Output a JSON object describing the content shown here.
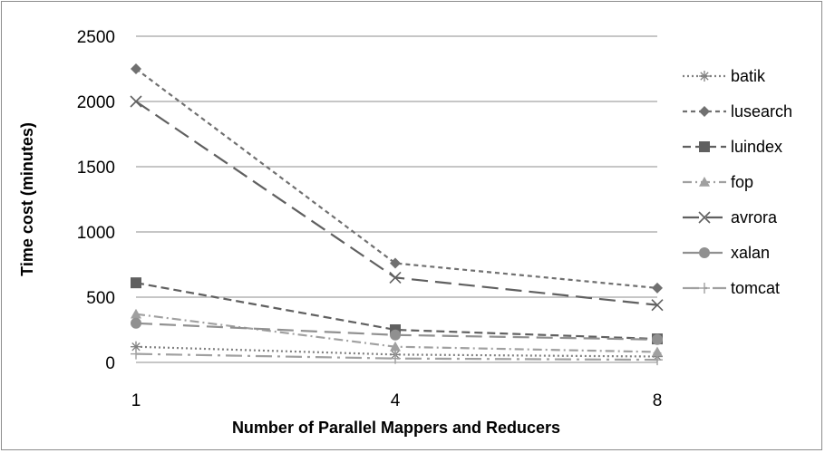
{
  "chart_data": {
    "type": "line",
    "title": "",
    "xlabel": "Number of Parallel Mappers and Reducers",
    "ylabel": "Time cost (minutes)",
    "categories": [
      "1",
      "4",
      "8"
    ],
    "ylim": [
      0,
      2500
    ],
    "yticks": [
      "0",
      "500",
      "1000",
      "1500",
      "2000",
      "2500"
    ],
    "grid": true,
    "legend_position": "right",
    "series": [
      {
        "name": "batik",
        "values": [
          120,
          60,
          45
        ],
        "marker": "asterisk",
        "dash": "dotted",
        "color": "#808080"
      },
      {
        "name": "lusearch",
        "values": [
          2250,
          760,
          570
        ],
        "marker": "diamond",
        "dash": "short-dash",
        "color": "#707070"
      },
      {
        "name": "luindex",
        "values": [
          610,
          250,
          180
        ],
        "marker": "square",
        "dash": "dash",
        "color": "#606060"
      },
      {
        "name": "fop",
        "values": [
          370,
          120,
          80
        ],
        "marker": "triangle",
        "dash": "dash-dot",
        "color": "#a0a0a0"
      },
      {
        "name": "avrora",
        "values": [
          2000,
          650,
          440
        ],
        "marker": "x",
        "dash": "long-dash",
        "color": "#606060"
      },
      {
        "name": "xalan",
        "values": [
          300,
          210,
          175
        ],
        "marker": "circle",
        "dash": "long-dash",
        "color": "#909090"
      },
      {
        "name": "tomcat",
        "values": [
          65,
          30,
          20
        ],
        "marker": "plus",
        "dash": "long-dash-dot",
        "color": "#a0a0a0"
      }
    ]
  }
}
